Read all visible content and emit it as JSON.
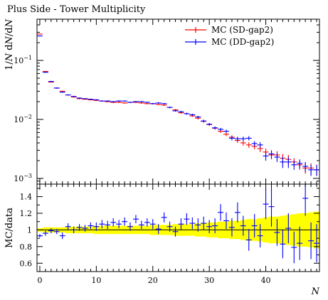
{
  "chart_data": [
    {
      "type": "scatter",
      "title": "Plus Side - Tower Multiplicity",
      "ylabel": "1/N dN/dN",
      "yscale": "log",
      "ylim": [
        0.0008,
        0.5
      ],
      "xlim": [
        -0.5,
        49.5
      ],
      "yticks": [
        {
          "v": 0.1,
          "base": "10",
          "exp": "−1"
        },
        {
          "v": 0.01,
          "base": "10",
          "exp": "−2"
        },
        {
          "v": 0.001,
          "base": "10",
          "exp": "−3"
        }
      ],
      "legend": {
        "placement": "top-right",
        "entries": [
          "MC (SD-gap2)",
          "MC (DD-gap2)"
        ]
      },
      "series": [
        {
          "name": "MC (SD-gap2)",
          "color": "#ff0000",
          "x": [
            0,
            1,
            2,
            3,
            4,
            5,
            6,
            7,
            8,
            9,
            10,
            11,
            12,
            13,
            14,
            15,
            16,
            17,
            18,
            19,
            20,
            21,
            22,
            23,
            24,
            25,
            26,
            27,
            28,
            29,
            30,
            31,
            32,
            33,
            34,
            35,
            36,
            37,
            38,
            39,
            40,
            41,
            42,
            43,
            44,
            45,
            46,
            47,
            48,
            49
          ],
          "y": [
            0.28,
            0.065,
            0.043,
            0.034,
            0.03,
            0.026,
            0.024,
            0.0225,
            0.022,
            0.0215,
            0.021,
            0.0205,
            0.02,
            0.0195,
            0.0195,
            0.019,
            0.0195,
            0.0195,
            0.019,
            0.0185,
            0.0185,
            0.018,
            0.0175,
            0.016,
            0.0145,
            0.013,
            0.0125,
            0.0115,
            0.0105,
            0.0093,
            0.0082,
            0.0071,
            0.0063,
            0.0056,
            0.005,
            0.0044,
            0.004,
            0.0037,
            0.0035,
            0.0032,
            0.0028,
            0.0025,
            0.0025,
            0.0022,
            0.0021,
            0.0019,
            0.0017,
            0.0015,
            0.0015,
            0.0014
          ],
          "err": [
            0.005,
            0.0015,
            0.001,
            0.0008,
            0.0007,
            0.0006,
            0.0006,
            0.0006,
            0.0005,
            0.0005,
            0.0005,
            0.0005,
            0.0005,
            0.0005,
            0.0005,
            0.0005,
            0.0005,
            0.0005,
            0.0005,
            0.0005,
            0.0005,
            0.0005,
            0.0005,
            0.0005,
            0.0005,
            0.0005,
            0.0005,
            0.0005,
            0.0005,
            0.0005,
            0.0004,
            0.0004,
            0.0004,
            0.0004,
            0.0004,
            0.0004,
            0.0004,
            0.0004,
            0.0004,
            0.0004,
            0.0004,
            0.0004,
            0.0004,
            0.0004,
            0.0004,
            0.0003,
            0.0003,
            0.0003,
            0.0003,
            0.0003
          ]
        },
        {
          "name": "MC (DD-gap2)",
          "color": "#0000ff",
          "x": [
            0,
            1,
            2,
            3,
            4,
            5,
            6,
            7,
            8,
            9,
            10,
            11,
            12,
            13,
            14,
            15,
            16,
            17,
            18,
            19,
            20,
            21,
            22,
            23,
            24,
            25,
            26,
            27,
            28,
            29,
            30,
            31,
            32,
            33,
            34,
            35,
            36,
            37,
            38,
            39,
            40,
            41,
            42,
            43,
            44,
            45,
            46,
            47,
            48,
            49
          ],
          "y": [
            0.26,
            0.063,
            0.044,
            0.034,
            0.029,
            0.026,
            0.0245,
            0.023,
            0.0225,
            0.022,
            0.0215,
            0.0205,
            0.0205,
            0.02,
            0.0205,
            0.0205,
            0.0195,
            0.02,
            0.02,
            0.0195,
            0.0185,
            0.019,
            0.0185,
            0.016,
            0.014,
            0.0135,
            0.0125,
            0.012,
            0.011,
            0.0094,
            0.0083,
            0.0072,
            0.0068,
            0.0063,
            0.0048,
            0.0047,
            0.0047,
            0.0048,
            0.0039,
            0.0037,
            0.0024,
            0.0026,
            0.0023,
            0.0019,
            0.0019,
            0.0017,
            0.0018,
            0.0016,
            0.0014,
            0.0014
          ],
          "err": [
            0.005,
            0.0015,
            0.001,
            0.0008,
            0.0007,
            0.0006,
            0.0006,
            0.0006,
            0.0005,
            0.0005,
            0.0005,
            0.0005,
            0.0005,
            0.0005,
            0.0005,
            0.0005,
            0.0005,
            0.0005,
            0.0005,
            0.0005,
            0.0005,
            0.0005,
            0.0005,
            0.0005,
            0.0005,
            0.0005,
            0.0005,
            0.0005,
            0.0005,
            0.0005,
            0.0004,
            0.0004,
            0.0004,
            0.0004,
            0.0004,
            0.0004,
            0.0004,
            0.0004,
            0.0004,
            0.0004,
            0.0004,
            0.0004,
            0.0004,
            0.0004,
            0.0004,
            0.0003,
            0.0003,
            0.0003,
            0.0003,
            0.0003
          ]
        }
      ]
    },
    {
      "type": "scatter",
      "xlabel": "N",
      "ylabel": "MC/data",
      "xlim": [
        -0.5,
        49.5
      ],
      "ylim": [
        0.5,
        1.55
      ],
      "xticks": [
        {
          "v": 0,
          "label": "0"
        },
        {
          "v": 10,
          "label": "10"
        },
        {
          "v": 20,
          "label": "20"
        },
        {
          "v": 30,
          "label": "30"
        },
        {
          "v": 40,
          "label": "40"
        }
      ],
      "yticks": [
        {
          "v": 0.6,
          "label": "0.6"
        },
        {
          "v": 0.8,
          "label": "0.8"
        },
        {
          "v": 1.0,
          "label": "1"
        },
        {
          "v": 1.2,
          "label": "1.2"
        },
        {
          "v": 1.4,
          "label": "1.4"
        }
      ],
      "reference_line": 1.0,
      "band_color": "#ffff00",
      "band_halfwidth": [
        0.02,
        0.03,
        0.03,
        0.03,
        0.03,
        0.04,
        0.04,
        0.04,
        0.04,
        0.04,
        0.05,
        0.05,
        0.05,
        0.05,
        0.05,
        0.05,
        0.05,
        0.05,
        0.05,
        0.05,
        0.06,
        0.06,
        0.06,
        0.06,
        0.07,
        0.07,
        0.07,
        0.07,
        0.08,
        0.08,
        0.09,
        0.09,
        0.1,
        0.1,
        0.11,
        0.11,
        0.12,
        0.13,
        0.13,
        0.14,
        0.15,
        0.16,
        0.16,
        0.17,
        0.18,
        0.19,
        0.2,
        0.2,
        0.21,
        0.22
      ],
      "series": [
        {
          "name": "MC (DD-gap2)",
          "color": "#0000ff",
          "x": [
            0,
            1,
            2,
            3,
            4,
            5,
            6,
            7,
            8,
            9,
            10,
            11,
            12,
            13,
            14,
            15,
            16,
            17,
            18,
            19,
            20,
            21,
            22,
            23,
            24,
            25,
            26,
            27,
            28,
            29,
            30,
            31,
            32,
            33,
            34,
            35,
            36,
            37,
            38,
            39,
            40,
            41,
            42,
            43,
            44,
            45,
            46,
            47,
            48,
            49
          ],
          "y": [
            0.93,
            0.96,
            0.99,
            0.98,
            0.93,
            1.04,
            1.0,
            1.03,
            1.02,
            1.05,
            1.04,
            1.07,
            1.06,
            1.09,
            1.07,
            1.1,
            1.04,
            1.13,
            1.06,
            1.09,
            1.07,
            1.01,
            1.15,
            1.04,
            0.98,
            1.07,
            1.13,
            1.08,
            1.06,
            1.08,
            1.04,
            1.05,
            1.21,
            1.11,
            1.03,
            1.21,
            1.05,
            0.88,
            1.05,
            0.93,
            1.31,
            1.28,
            0.97,
            0.83,
            1.02,
            0.79,
            0.84,
            1.38,
            0.87,
            0.84
          ],
          "err": [
            0.02,
            0.03,
            0.03,
            0.03,
            0.04,
            0.04,
            0.04,
            0.04,
            0.04,
            0.04,
            0.05,
            0.05,
            0.05,
            0.05,
            0.05,
            0.05,
            0.05,
            0.05,
            0.05,
            0.05,
            0.06,
            0.06,
            0.06,
            0.06,
            0.06,
            0.07,
            0.07,
            0.07,
            0.08,
            0.08,
            0.08,
            0.09,
            0.1,
            0.1,
            0.11,
            0.12,
            0.12,
            0.13,
            0.14,
            0.14,
            0.18,
            0.24,
            0.16,
            0.17,
            0.18,
            0.19,
            0.2,
            0.21,
            0.22,
            0.23
          ]
        }
      ]
    }
  ]
}
